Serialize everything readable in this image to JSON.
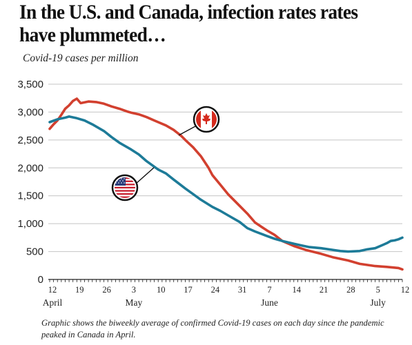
{
  "header": {
    "title": "In the U.S. and Canada, infection rates rates have plummeted…",
    "subtitle": "Covid-19 cases per million"
  },
  "caption": "Graphic shows the biweekly average of confirmed Covid-19 cases on each day since the pandemic peaked in Canada in April.",
  "chart_data": {
    "type": "line",
    "title": "In the U.S. and Canada, infection rates rates have plummeted…",
    "subtitle": "Covid-19 cases per million",
    "xlabel": "",
    "ylabel": "",
    "ylim": [
      0,
      3500
    ],
    "yticks": [
      0,
      500,
      1000,
      1500,
      2000,
      2500,
      3000,
      3500
    ],
    "ytick_labels": [
      "0",
      "500",
      "1,000",
      "1,500",
      "2,000",
      "2,500",
      "3,000",
      "3,500"
    ],
    "xlim": [
      "2020-04-12",
      "2020-07-12"
    ],
    "xticks": [
      {
        "date": "2020-04-12",
        "label": "12",
        "month": "April"
      },
      {
        "date": "2020-04-19",
        "label": "19"
      },
      {
        "date": "2020-04-26",
        "label": "26"
      },
      {
        "date": "2020-05-03",
        "label": "3",
        "month": "May"
      },
      {
        "date": "2020-05-10",
        "label": "10"
      },
      {
        "date": "2020-05-17",
        "label": "17"
      },
      {
        "date": "2020-05-24",
        "label": "24"
      },
      {
        "date": "2020-05-31",
        "label": "31"
      },
      {
        "date": "2020-06-07",
        "label": "7",
        "month": "June"
      },
      {
        "date": "2020-06-14",
        "label": "14"
      },
      {
        "date": "2020-06-21",
        "label": "21"
      },
      {
        "date": "2020-06-28",
        "label": "28"
      },
      {
        "date": "2020-07-05",
        "label": "5",
        "month": "July"
      },
      {
        "date": "2020-07-12",
        "label": "12"
      }
    ],
    "grid": "horizontal",
    "legend": "flag markers on lines",
    "series": [
      {
        "icon": "canada-flag-icon",
        "color": "#d2402f",
        "points": [
          [
            "2020-04-12",
            2700
          ],
          [
            "2020-04-13",
            2780
          ],
          [
            "2020-04-14",
            2850
          ],
          [
            "2020-04-15",
            2950
          ],
          [
            "2020-04-16",
            3060
          ],
          [
            "2020-04-17",
            3120
          ],
          [
            "2020-04-18",
            3200
          ],
          [
            "2020-04-19",
            3240
          ],
          [
            "2020-04-20",
            3160
          ],
          [
            "2020-04-22",
            3190
          ],
          [
            "2020-04-24",
            3180
          ],
          [
            "2020-04-26",
            3150
          ],
          [
            "2020-04-28",
            3100
          ],
          [
            "2020-04-30",
            3060
          ],
          [
            "2020-05-02",
            3010
          ],
          [
            "2020-05-03",
            2990
          ],
          [
            "2020-05-05",
            2960
          ],
          [
            "2020-05-07",
            2910
          ],
          [
            "2020-05-09",
            2850
          ],
          [
            "2020-05-10",
            2820
          ],
          [
            "2020-05-12",
            2760
          ],
          [
            "2020-05-14",
            2680
          ],
          [
            "2020-05-16",
            2570
          ],
          [
            "2020-05-17",
            2500
          ],
          [
            "2020-05-19",
            2370
          ],
          [
            "2020-05-21",
            2210
          ],
          [
            "2020-05-23",
            2000
          ],
          [
            "2020-05-24",
            1870
          ],
          [
            "2020-05-26",
            1700
          ],
          [
            "2020-05-28",
            1530
          ],
          [
            "2020-05-31",
            1320
          ],
          [
            "2020-06-02",
            1180
          ],
          [
            "2020-06-04",
            1020
          ],
          [
            "2020-06-07",
            880
          ],
          [
            "2020-06-09",
            800
          ],
          [
            "2020-06-11",
            690
          ],
          [
            "2020-06-14",
            600
          ],
          [
            "2020-06-17",
            530
          ],
          [
            "2020-06-21",
            460
          ],
          [
            "2020-06-24",
            400
          ],
          [
            "2020-06-28",
            340
          ],
          [
            "2020-07-01",
            280
          ],
          [
            "2020-07-05",
            240
          ],
          [
            "2020-07-08",
            225
          ],
          [
            "2020-07-11",
            205
          ],
          [
            "2020-07-12",
            180
          ]
        ]
      },
      {
        "icon": "us-flag-icon",
        "color": "#1d7b98",
        "points": [
          [
            "2020-04-12",
            2820
          ],
          [
            "2020-04-14",
            2870
          ],
          [
            "2020-04-16",
            2900
          ],
          [
            "2020-04-17",
            2920
          ],
          [
            "2020-04-19",
            2890
          ],
          [
            "2020-04-21",
            2850
          ],
          [
            "2020-04-23",
            2780
          ],
          [
            "2020-04-26",
            2660
          ],
          [
            "2020-04-28",
            2550
          ],
          [
            "2020-04-30",
            2450
          ],
          [
            "2020-05-03",
            2330
          ],
          [
            "2020-05-05",
            2240
          ],
          [
            "2020-05-07",
            2120
          ],
          [
            "2020-05-10",
            1970
          ],
          [
            "2020-05-12",
            1900
          ],
          [
            "2020-05-14",
            1790
          ],
          [
            "2020-05-17",
            1630
          ],
          [
            "2020-05-19",
            1530
          ],
          [
            "2020-05-21",
            1430
          ],
          [
            "2020-05-24",
            1300
          ],
          [
            "2020-05-26",
            1230
          ],
          [
            "2020-05-28",
            1150
          ],
          [
            "2020-05-31",
            1030
          ],
          [
            "2020-06-02",
            920
          ],
          [
            "2020-06-04",
            860
          ],
          [
            "2020-06-07",
            780
          ],
          [
            "2020-06-09",
            730
          ],
          [
            "2020-06-11",
            690
          ],
          [
            "2020-06-14",
            640
          ],
          [
            "2020-06-16",
            610
          ],
          [
            "2020-06-18",
            580
          ],
          [
            "2020-06-21",
            560
          ],
          [
            "2020-06-24",
            530
          ],
          [
            "2020-06-26",
            510
          ],
          [
            "2020-06-28",
            500
          ],
          [
            "2020-07-01",
            510
          ],
          [
            "2020-07-03",
            540
          ],
          [
            "2020-07-05",
            560
          ],
          [
            "2020-07-07",
            620
          ],
          [
            "2020-07-08",
            650
          ],
          [
            "2020-07-09",
            690
          ],
          [
            "2020-07-10",
            700
          ],
          [
            "2020-07-11",
            720
          ],
          [
            "2020-07-12",
            750
          ]
        ]
      }
    ]
  }
}
